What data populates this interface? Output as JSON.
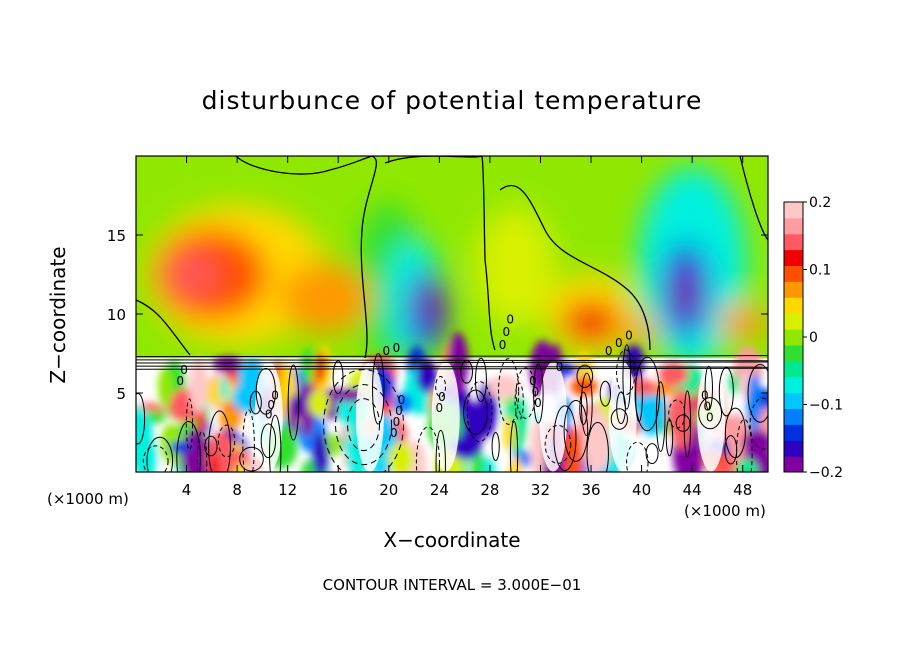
{
  "chart_data": {
    "type": "heatmap",
    "title": "disturbunce of potential temperature",
    "xlabel": "X−coordinate",
    "ylabel": "Z−coordinate",
    "x_unit_left": "(×1000 m)",
    "x_unit_right": "(×1000 m)",
    "footer": "CONTOUR INTERVAL = 3.000E−01",
    "xlim": [
      0,
      50
    ],
    "ylim": [
      0,
      20
    ],
    "x_ticks": [
      4,
      8,
      12,
      16,
      20,
      24,
      28,
      32,
      36,
      40,
      44,
      48
    ],
    "y_ticks": [
      5,
      10,
      15
    ],
    "colorbar": {
      "range": [
        -0.2,
        0.2
      ],
      "ticks": [
        {
          "value": 0.2,
          "label": "0.2"
        },
        {
          "value": 0.1,
          "label": "0.1"
        },
        {
          "value": 0,
          "label": "0"
        },
        {
          "value": -0.1,
          "label": "−0.1"
        },
        {
          "value": -0.2,
          "label": "−0.2"
        }
      ],
      "colors": [
        "#8000a0",
        "#3000c0",
        "#0030e0",
        "#0080ff",
        "#00c8ff",
        "#00f0e0",
        "#00e890",
        "#30e030",
        "#90e800",
        "#d8f000",
        "#ffd800",
        "#ff9800",
        "#ff5000",
        "#f00000",
        "#ff5a64",
        "#ff9ca0",
        "#ffc8c8"
      ]
    },
    "contour_labels": [
      "0",
      "0",
      "0",
      "0",
      "0",
      "0",
      "0",
      "0",
      "0",
      "0",
      "0",
      "0",
      "0",
      "0",
      "0",
      "0",
      "0",
      "0",
      "0",
      "0",
      "0",
      "0",
      "0",
      "0",
      "0",
      "0"
    ],
    "features": [
      {
        "x": 4.5,
        "z": 12.5,
        "value": 0.13
      },
      {
        "x": 6,
        "z": 13.5,
        "value": 0.09
      },
      {
        "x": 12,
        "z": 11,
        "value": 0.06
      },
      {
        "x": 16,
        "z": 13,
        "value": 0.05
      },
      {
        "x": 23,
        "z": 10.5,
        "value": -0.2
      },
      {
        "x": 23.5,
        "z": 8.5,
        "value": 0.2
      },
      {
        "x": 36,
        "z": 9.5,
        "value": 0.14
      },
      {
        "x": 40,
        "z": 9,
        "value": 0.08
      },
      {
        "x": 43.5,
        "z": 11.5,
        "value": -0.19
      },
      {
        "x": 44,
        "z": 8.2,
        "value": 0.2
      },
      {
        "x": 44,
        "z": 16,
        "value": -0.09
      },
      {
        "x": 30,
        "z": 13,
        "value": 0.02
      },
      {
        "x": 20,
        "z": 14,
        "value": -0.04
      }
    ]
  }
}
